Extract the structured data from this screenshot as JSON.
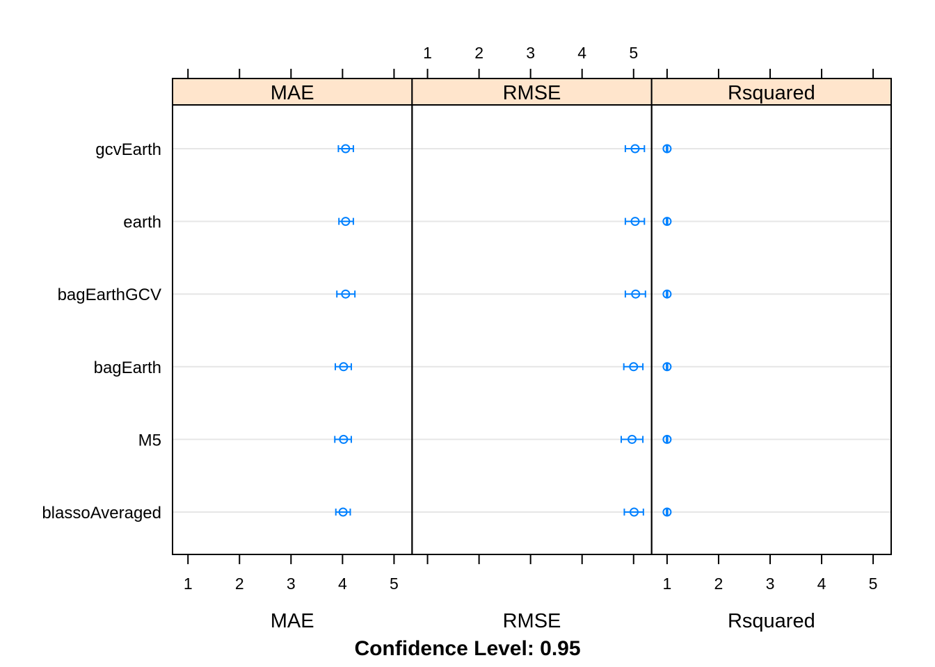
{
  "chart_data": {
    "type": "dotplot",
    "subtitle": "Confidence Level: 0.95",
    "categories": [
      "gcvEarth",
      "earth",
      "bagEarthGCV",
      "bagEarth",
      "M5",
      "blassoAveraged"
    ],
    "panels": [
      {
        "name": "MAE",
        "xlabel": "MAE",
        "ticks": [
          1,
          2,
          3,
          4,
          5
        ],
        "xlim": [
          0.7,
          5.35
        ],
        "estimates": [
          4.06,
          4.06,
          4.06,
          4.02,
          4.02,
          4.01
        ],
        "lower": [
          3.92,
          3.93,
          3.89,
          3.86,
          3.85,
          3.87
        ],
        "upper": [
          4.21,
          4.21,
          4.24,
          4.17,
          4.17,
          4.15
        ]
      },
      {
        "name": "RMSE",
        "xlabel": "RMSE",
        "ticks": [
          1,
          2,
          3,
          4,
          5
        ],
        "xlim": [
          0.7,
          5.35
        ],
        "estimates": [
          5.03,
          5.03,
          5.04,
          5.0,
          4.97,
          5.01
        ],
        "lower": [
          4.84,
          4.84,
          4.84,
          4.81,
          4.76,
          4.82
        ],
        "upper": [
          5.21,
          5.21,
          5.23,
          5.18,
          5.18,
          5.19
        ]
      },
      {
        "name": "Rsquared",
        "xlabel": "Rsquared",
        "ticks": [
          1,
          2,
          3,
          4,
          5
        ],
        "xlim": [
          0.7,
          5.35
        ],
        "estimates": [
          1.0,
          1.0,
          1.0,
          1.0,
          1.0,
          1.0
        ],
        "lower": [
          0.99,
          0.99,
          0.99,
          0.99,
          0.99,
          0.99
        ],
        "upper": [
          1.01,
          1.01,
          1.01,
          1.01,
          1.01,
          1.01
        ]
      }
    ],
    "colors": {
      "point": "#0080ff",
      "strip": "#ffe5cc",
      "gridline": "#e6e6e6",
      "frame": "#000000"
    },
    "grid": true
  }
}
